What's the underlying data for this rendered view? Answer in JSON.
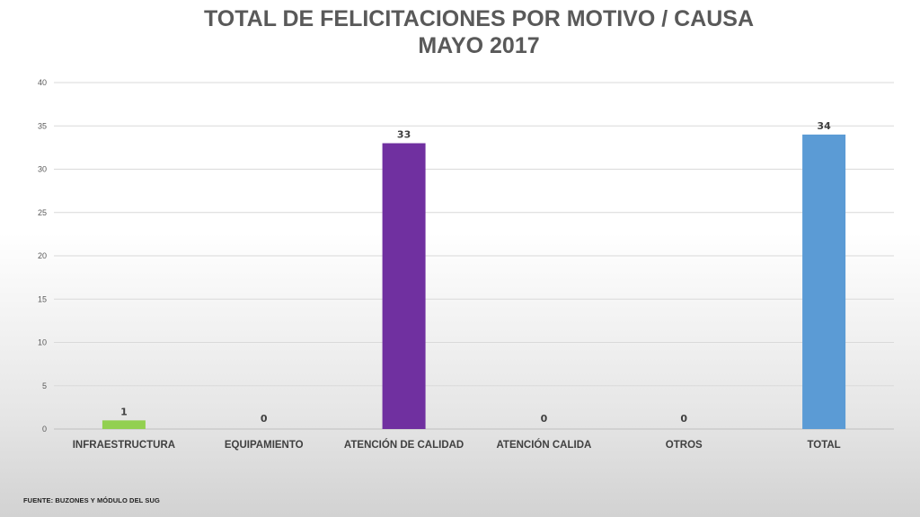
{
  "chart_data": {
    "type": "bar",
    "title_line1": "TOTAL DE FELICITACIONES POR MOTIVO / CAUSA",
    "title_line2": "MAYO 2017",
    "categories": [
      "INFRAESTRUCTURA",
      "EQUIPAMIENTO",
      "ATENCIÓN DE CALIDAD",
      "ATENCIÓN CALIDA",
      "OTROS",
      "TOTAL"
    ],
    "values": [
      1,
      0,
      33,
      0,
      0,
      34
    ],
    "data_labels": [
      "1",
      "0",
      "33",
      "0",
      "0",
      "34"
    ],
    "bar_colors": [
      "#92d050",
      "#a5a5a5",
      "#7030a0",
      "#a5a5a5",
      "#a5a5a5",
      "#5b9bd5"
    ],
    "ylim": [
      0,
      40
    ],
    "yticks": [
      0,
      5,
      10,
      15,
      20,
      25,
      30,
      35,
      40
    ],
    "grid": true,
    "legend": "none"
  },
  "footer": {
    "source": "FUENTE: BUZONES Y MÓDULO DEL SUG"
  }
}
